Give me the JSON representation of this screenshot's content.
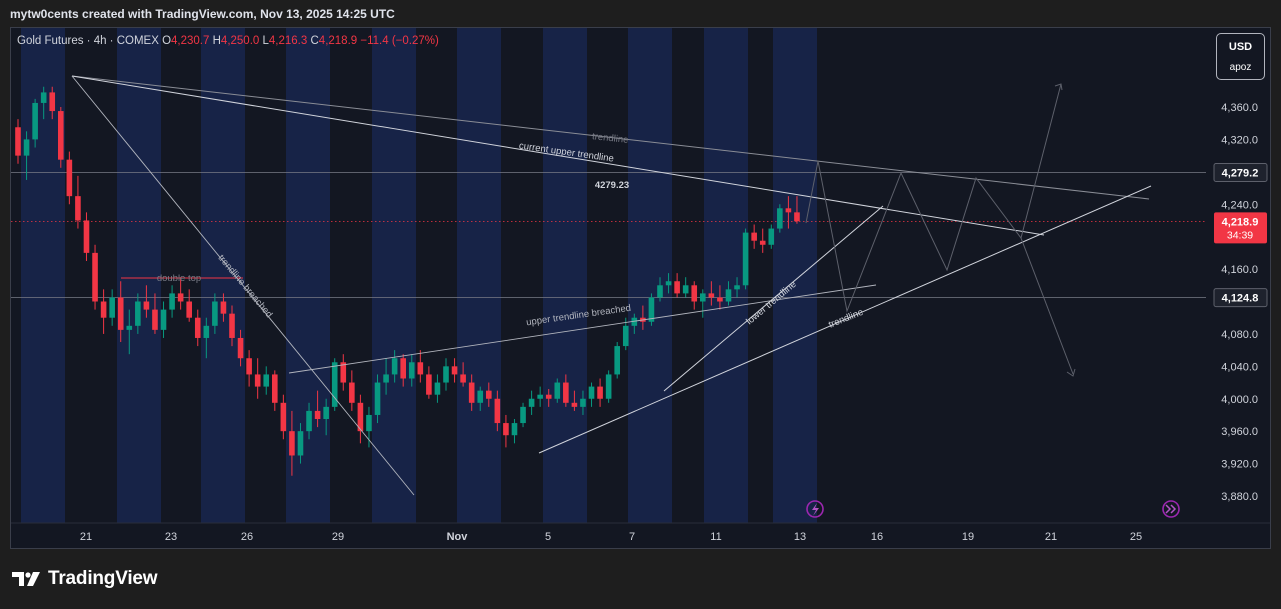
{
  "header": {
    "credit": "mytw0cents created with TradingView.com, Nov 13, 2025 14:25 UTC"
  },
  "legend": {
    "symbol": "Gold Futures · 4h · COMEX",
    "open_label": "O",
    "open": "4,230.7",
    "high_label": "H",
    "high": "4,250.0",
    "low_label": "L",
    "low": "4,216.3",
    "close_label": "C",
    "close": "4,218.9",
    "change": "−11.4 (−0.27%)"
  },
  "currency_box": {
    "currency": "USD",
    "user": "apoz"
  },
  "footer": {
    "brand": "TradingView",
    "logo": "tradingview-logo-icon"
  },
  "colors": {
    "up": "#089981",
    "down": "#f23645",
    "background": "#131722",
    "session_band": "#172347"
  },
  "chart_data": {
    "type": "candlestick",
    "y_axis": {
      "ticks": [
        3880,
        3920,
        3960,
        4000,
        4040,
        4080,
        4160,
        4240,
        4320,
        4360
      ],
      "range": [
        3860,
        4410
      ],
      "side": "right"
    },
    "x_axis": {
      "ticks": [
        "21",
        "23",
        "26",
        "29",
        "Nov",
        "5",
        "7",
        "11",
        "13",
        "16",
        "19",
        "21",
        "25"
      ]
    },
    "price_labels": [
      {
        "value": "4,279.2",
        "kind": "horizontal-line"
      },
      {
        "value": "4,218.9",
        "countdown": "34:39",
        "kind": "last-price"
      },
      {
        "value": "4,124.8",
        "kind": "horizontal-line"
      }
    ],
    "annotations": [
      {
        "text": "current upper trendline"
      },
      {
        "text": "4279.23"
      },
      {
        "text": "trendline"
      },
      {
        "text": "trendline"
      },
      {
        "text": "trendline breached"
      },
      {
        "text": "double top"
      },
      {
        "text": "upper trendline breached"
      },
      {
        "text": "lower trendline"
      }
    ],
    "candles": [
      [
        4335,
        4345,
        4290,
        4300
      ],
      [
        4300,
        4330,
        4270,
        4320
      ],
      [
        4320,
        4370,
        4310,
        4365
      ],
      [
        4365,
        4385,
        4345,
        4378
      ],
      [
        4378,
        4385,
        4345,
        4355
      ],
      [
        4355,
        4360,
        4285,
        4295
      ],
      [
        4295,
        4305,
        4240,
        4250
      ],
      [
        4250,
        4275,
        4210,
        4220
      ],
      [
        4220,
        4230,
        4170,
        4180
      ],
      [
        4180,
        4190,
        4110,
        4120
      ],
      [
        4120,
        4135,
        4080,
        4100
      ],
      [
        4100,
        4135,
        4090,
        4125
      ],
      [
        4125,
        4145,
        4070,
        4085
      ],
      [
        4085,
        4110,
        4055,
        4090
      ],
      [
        4090,
        4130,
        4080,
        4120
      ],
      [
        4120,
        4140,
        4100,
        4110
      ],
      [
        4110,
        4130,
        4080,
        4085
      ],
      [
        4085,
        4120,
        4075,
        4110
      ],
      [
        4110,
        4140,
        4100,
        4130
      ],
      [
        4130,
        4150,
        4110,
        4120
      ],
      [
        4120,
        4135,
        4095,
        4100
      ],
      [
        4100,
        4110,
        4065,
        4075
      ],
      [
        4075,
        4100,
        4050,
        4090
      ],
      [
        4090,
        4130,
        4080,
        4120
      ],
      [
        4120,
        4130,
        4095,
        4105
      ],
      [
        4105,
        4115,
        4065,
        4075
      ],
      [
        4075,
        4085,
        4040,
        4050
      ],
      [
        4050,
        4060,
        4015,
        4030
      ],
      [
        4030,
        4050,
        4000,
        4015
      ],
      [
        4015,
        4040,
        4005,
        4030
      ],
      [
        4030,
        4035,
        3985,
        3995
      ],
      [
        3995,
        4005,
        3950,
        3960
      ],
      [
        3960,
        3985,
        3905,
        3930
      ],
      [
        3930,
        3970,
        3920,
        3960
      ],
      [
        3960,
        3995,
        3950,
        3985
      ],
      [
        3985,
        4010,
        3965,
        3975
      ],
      [
        3975,
        4000,
        3955,
        3990
      ],
      [
        3990,
        4050,
        3985,
        4045
      ],
      [
        4045,
        4055,
        4010,
        4020
      ],
      [
        4020,
        4035,
        3985,
        3995
      ],
      [
        3995,
        4005,
        3945,
        3960
      ],
      [
        3960,
        3990,
        3940,
        3980
      ],
      [
        3980,
        4030,
        3970,
        4020
      ],
      [
        4020,
        4050,
        4005,
        4030
      ],
      [
        4030,
        4060,
        4020,
        4050
      ],
      [
        4050,
        4055,
        4015,
        4025
      ],
      [
        4025,
        4055,
        4015,
        4045
      ],
      [
        4045,
        4060,
        4020,
        4030
      ],
      [
        4030,
        4040,
        4000,
        4005
      ],
      [
        4005,
        4030,
        3995,
        4020
      ],
      [
        4020,
        4050,
        4010,
        4040
      ],
      [
        4040,
        4050,
        4020,
        4030
      ],
      [
        4030,
        4045,
        4015,
        4020
      ],
      [
        4020,
        4030,
        3985,
        3995
      ],
      [
        3995,
        4015,
        3985,
        4010
      ],
      [
        4010,
        4020,
        3990,
        4000
      ],
      [
        4000,
        4010,
        3960,
        3970
      ],
      [
        3970,
        3980,
        3940,
        3955
      ],
      [
        3955,
        3975,
        3945,
        3970
      ],
      [
        3970,
        3995,
        3965,
        3990
      ],
      [
        3990,
        4010,
        3980,
        4000
      ],
      [
        4000,
        4015,
        3990,
        4005
      ],
      [
        4005,
        4012,
        3990,
        4000
      ],
      [
        4000,
        4025,
        3995,
        4020
      ],
      [
        4020,
        4030,
        3990,
        3995
      ],
      [
        3995,
        4010,
        3985,
        3990
      ],
      [
        3990,
        4010,
        3980,
        4000
      ],
      [
        4000,
        4020,
        3990,
        4015
      ],
      [
        4015,
        4025,
        3990,
        4000
      ],
      [
        4000,
        4035,
        3995,
        4030
      ],
      [
        4030,
        4070,
        4025,
        4065
      ],
      [
        4065,
        4100,
        4060,
        4090
      ],
      [
        4090,
        4105,
        4080,
        4100
      ],
      [
        4100,
        4115,
        4085,
        4095
      ],
      [
        4095,
        4130,
        4090,
        4125
      ],
      [
        4125,
        4150,
        4120,
        4140
      ],
      [
        4140,
        4155,
        4130,
        4145
      ],
      [
        4145,
        4155,
        4125,
        4130
      ],
      [
        4130,
        4150,
        4125,
        4140
      ],
      [
        4140,
        4145,
        4110,
        4120
      ],
      [
        4120,
        4135,
        4100,
        4130
      ],
      [
        4130,
        4145,
        4115,
        4125
      ],
      [
        4125,
        4140,
        4110,
        4120
      ],
      [
        4120,
        4145,
        4115,
        4135
      ],
      [
        4135,
        4150,
        4125,
        4140
      ],
      [
        4140,
        4210,
        4135,
        4205
      ],
      [
        4205,
        4215,
        4185,
        4195
      ],
      [
        4195,
        4210,
        4180,
        4190
      ],
      [
        4190,
        4215,
        4185,
        4210
      ],
      [
        4210,
        4240,
        4205,
        4235
      ],
      [
        4235,
        4250,
        4210,
        4230
      ],
      [
        4230,
        4250,
        4216,
        4219
      ]
    ]
  }
}
